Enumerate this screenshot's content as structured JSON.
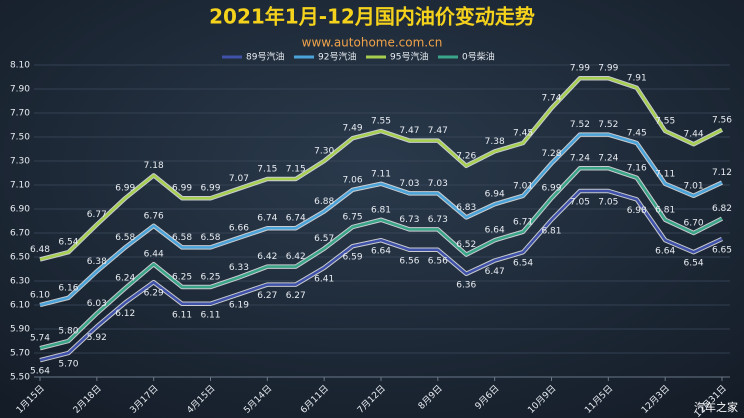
{
  "chart_data": {
    "type": "line",
    "title": "2021年1月-12月国内油价变动走势",
    "subtitle": "www.autohome.com.cn",
    "watermark": "汽车之家",
    "categories": [
      "1月15日",
      null,
      "2月18日",
      null,
      "3月17日",
      null,
      "4月15日",
      null,
      "5月14日",
      null,
      "6月11日",
      null,
      "7月12日",
      null,
      "8月9日",
      null,
      "9月6日",
      null,
      "10月9日",
      null,
      "11月5日",
      null,
      "12月3日",
      null,
      "12月31日"
    ],
    "ylim": [
      5.5,
      8.1
    ],
    "yticks": [
      {
        "value": 5.5,
        "label": "5.50"
      },
      {
        "value": 5.7,
        "label": "5.70"
      },
      {
        "value": 5.9,
        "label": "5.90"
      },
      {
        "value": 6.1,
        "label": "6.10"
      },
      {
        "value": 6.3,
        "label": "6.30"
      },
      {
        "value": 6.5,
        "label": "6.50"
      },
      {
        "value": 6.7,
        "label": "6.70"
      },
      {
        "value": 6.9,
        "label": "6.90"
      },
      {
        "value": 7.1,
        "label": "7.10"
      },
      {
        "value": 7.3,
        "label": "7.30"
      },
      {
        "value": 7.5,
        "label": "7.50"
      },
      {
        "value": 7.7,
        "label": "7.70"
      },
      {
        "value": 7.9,
        "label": "7.90"
      },
      {
        "value": 8.1,
        "label": "8.10"
      }
    ],
    "grid": true,
    "legend": "top",
    "series": [
      {
        "name": "89号汽油",
        "color": "#3f51a8",
        "label_side": "below",
        "values": [
          5.64,
          5.7,
          5.92,
          6.12,
          6.29,
          6.11,
          6.11,
          6.19,
          6.27,
          6.27,
          6.41,
          6.59,
          6.64,
          6.56,
          6.56,
          6.36,
          6.47,
          6.54,
          6.81,
          7.05,
          7.05,
          6.98,
          6.64,
          6.54,
          6.65
        ],
        "value_labels": [
          "5.64",
          "5.70",
          "5.92",
          "6.12",
          "6.29",
          "6.11",
          "6.11",
          "6.19",
          "6.27",
          "6.27",
          "6.41",
          "6.59",
          "6.64",
          "6.56",
          "6.56",
          "6.36",
          "6.47",
          "6.54",
          "6.81",
          "7.05",
          "7.05",
          "6.98",
          "6.64",
          "6.54",
          "6.65"
        ]
      },
      {
        "name": "92号汽油",
        "color": "#4aa3d9",
        "label_side": "above",
        "values": [
          6.1,
          6.16,
          6.38,
          6.58,
          6.76,
          6.58,
          6.58,
          6.66,
          6.74,
          6.74,
          6.88,
          7.06,
          7.11,
          7.03,
          7.03,
          6.83,
          6.94,
          7.01,
          7.28,
          7.52,
          7.52,
          7.45,
          7.11,
          7.01,
          7.12
        ],
        "value_labels": [
          "6.10",
          "6.16",
          "6.38",
          "6.58",
          "6.76",
          "6.58",
          "6.58",
          "6.66",
          "6.74",
          "6.74",
          "6.88",
          "7.06",
          "7.11",
          "7.03",
          "7.03",
          "6.83",
          "6.94",
          "7.01",
          "7.28",
          "7.52",
          "7.52",
          "7.45",
          "7.11",
          "7.01",
          "7.12"
        ]
      },
      {
        "name": "95号汽油",
        "color": "#a6cf4f",
        "label_side": "above",
        "values": [
          6.48,
          6.54,
          6.77,
          6.99,
          7.18,
          6.99,
          6.99,
          7.07,
          7.15,
          7.15,
          7.3,
          7.49,
          7.55,
          7.47,
          7.47,
          7.26,
          7.38,
          7.45,
          7.74,
          7.99,
          7.99,
          7.91,
          7.55,
          7.44,
          7.56
        ],
        "value_labels": [
          "6.48",
          "6.54",
          "6.77",
          "6.99",
          "7.18",
          "6.99",
          "6.99",
          "7.07",
          "7.15",
          "7.15",
          "7.30",
          "7.49",
          "7.55",
          "7.47",
          "7.47",
          "7.26",
          "7.38",
          "7.45",
          "7.74",
          "7.99",
          "7.99",
          "7.91",
          "7.55",
          "7.44",
          "7.56"
        ]
      },
      {
        "name": "0号柴油",
        "color": "#3aa588",
        "label_side": "above",
        "values": [
          5.74,
          5.8,
          6.03,
          6.24,
          6.44,
          6.25,
          6.25,
          6.33,
          6.42,
          6.42,
          6.57,
          6.75,
          6.81,
          6.73,
          6.73,
          6.52,
          6.64,
          6.71,
          6.99,
          7.24,
          7.24,
          7.16,
          6.81,
          6.7,
          6.82
        ],
        "value_labels": [
          "5.74",
          "5.80",
          "6.03",
          "6.24",
          "6.44",
          "6.25",
          "6.25",
          "6.33",
          "6.42",
          "6.42",
          "6.57",
          "6.75",
          "6.81",
          "6.73",
          "6.73",
          "6.52",
          "6.64",
          "6.71",
          "6.99",
          "7.24",
          "7.24",
          "7.16",
          "6.81",
          "6.70",
          "6.82"
        ]
      }
    ]
  }
}
